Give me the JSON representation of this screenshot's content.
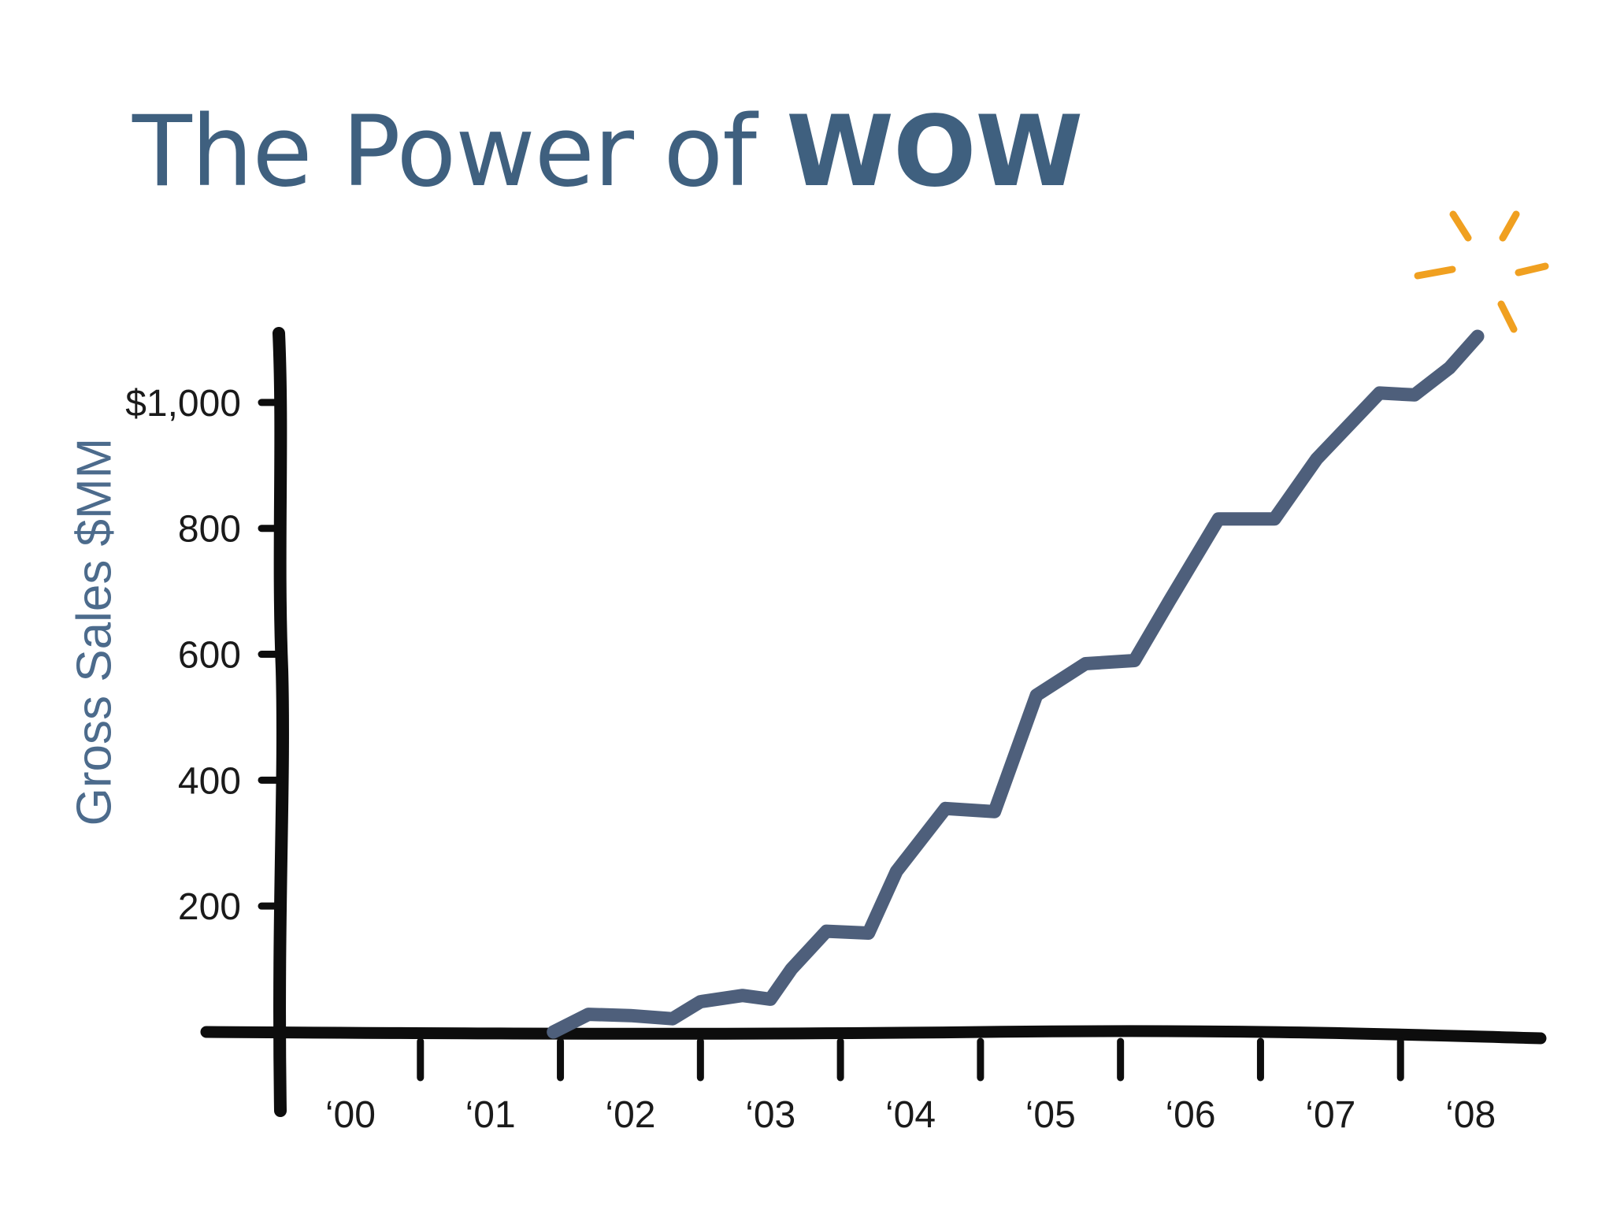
{
  "slide": {
    "title_regular": "The Power of ",
    "title_bold": "WOW"
  },
  "colors": {
    "title": "#3f607f",
    "axis_label": "#4c6b8c",
    "axes": "#0d0d0d",
    "line": "#4e5f7b",
    "sparkle": "#f0a020"
  },
  "decoration": {
    "sparkle_icon": "sparkle-icon"
  },
  "chart_data": {
    "type": "line",
    "title": "",
    "xlabel": "",
    "ylabel": "Gross Sales $MM",
    "ylim": [
      0,
      1110
    ],
    "xlim": [
      2000,
      2009
    ],
    "grid": false,
    "legend": "none",
    "y_ticks": [
      {
        "value": 200,
        "label": "200"
      },
      {
        "value": 400,
        "label": "400"
      },
      {
        "value": 600,
        "label": "600"
      },
      {
        "value": 800,
        "label": "800"
      },
      {
        "value": 1000,
        "label": "$1,000"
      }
    ],
    "x_ticks": [
      {
        "value": 2000.5,
        "label": "‘00"
      },
      {
        "value": 2001.5,
        "label": "‘01"
      },
      {
        "value": 2002.5,
        "label": "‘02"
      },
      {
        "value": 2003.5,
        "label": "‘03"
      },
      {
        "value": 2004.5,
        "label": "‘04"
      },
      {
        "value": 2005.5,
        "label": "‘05"
      },
      {
        "value": 2006.5,
        "label": "‘06"
      },
      {
        "value": 2007.5,
        "label": "‘07"
      },
      {
        "value": 2008.5,
        "label": "‘08"
      }
    ],
    "series": [
      {
        "x": [
          2001.95,
          2002.2,
          2002.5,
          2002.8,
          2003.0,
          2003.3,
          2003.5,
          2003.65,
          2003.9,
          2004.2,
          2004.4,
          2004.75,
          2005.1,
          2005.4,
          2005.75,
          2006.1,
          2006.35,
          2006.7,
          2007.1,
          2007.4,
          2007.85,
          2008.1,
          2008.35,
          2008.55
        ],
        "y": [
          0,
          28,
          26,
          21,
          48,
          58,
          52,
          100,
          160,
          157,
          255,
          355,
          350,
          535,
          585,
          590,
          685,
          815,
          815,
          910,
          1015,
          1012,
          1055,
          1105
        ]
      }
    ]
  }
}
